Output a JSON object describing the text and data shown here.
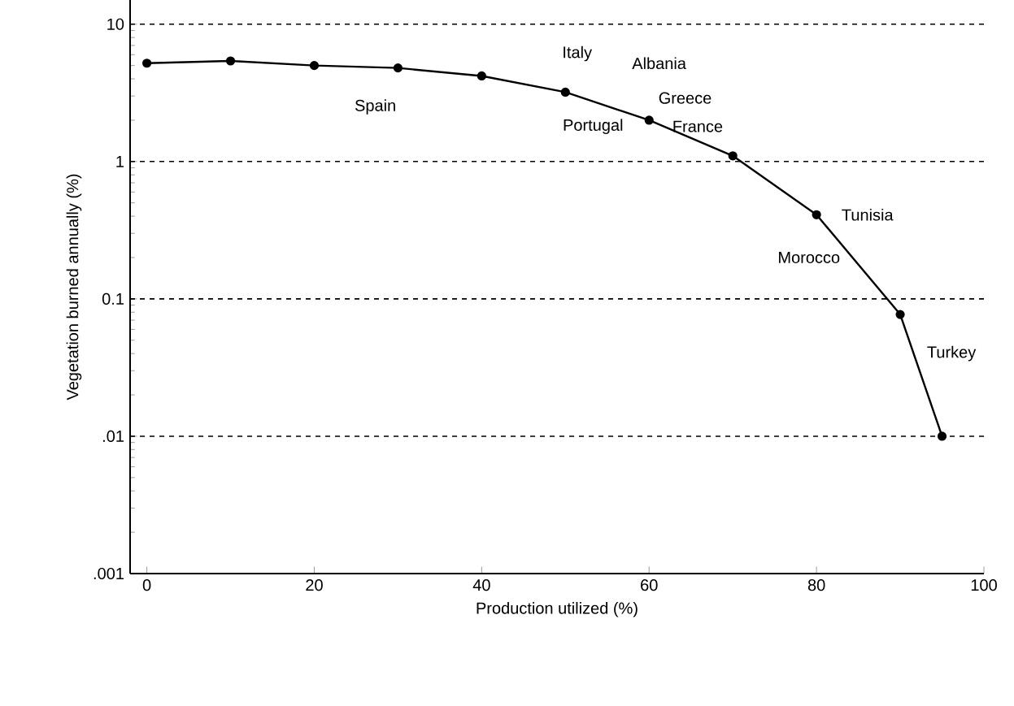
{
  "chart_data": {
    "type": "line",
    "xlabel": "Production utilized (%)",
    "ylabel": "Vegetation burned annually (%)",
    "x": [
      0,
      10,
      20,
      30,
      40,
      50,
      60,
      70,
      80,
      90,
      95
    ],
    "series": [
      {
        "color": "#000000",
        "values": [
          5.2,
          5.4,
          5.0,
          4.8,
          4.2,
          3.2,
          2.0,
          1.1,
          0.41,
          0.077,
          0.01
        ]
      }
    ],
    "xlim": [
      -2,
      100
    ],
    "xticks": [
      0,
      20,
      40,
      60,
      80,
      100
    ],
    "ylim": [
      0.001,
      15
    ],
    "yticks": [
      {
        "value": 0.001,
        "label": ".001"
      },
      {
        "value": 0.01,
        "label": ".01"
      },
      0.1,
      1,
      10
    ],
    "log": "y",
    "grid": "y",
    "marker": "circle",
    "line_style": "solid",
    "annotations": [
      "Italy",
      "Albania",
      "Greece",
      "Portugal",
      "France",
      "Spain",
      "Tunisia",
      "Morocco",
      "Turkey"
    ]
  }
}
